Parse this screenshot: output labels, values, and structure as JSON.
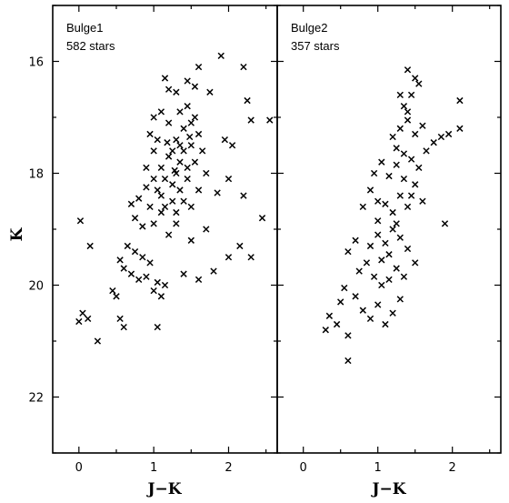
{
  "chart_data": [
    {
      "type": "scatter",
      "panel": "left",
      "annotation_name": "Bulge1",
      "annotation_count": "582 stars",
      "xlabel": "J−K",
      "ylabel": "K",
      "xlim": [
        -0.35,
        2.65
      ],
      "ylim": [
        23.0,
        15.0
      ],
      "y_inverted": true,
      "xticks": [
        0,
        1,
        2
      ],
      "xtick_labels": [
        "0",
        "1",
        "2"
      ],
      "yticks": [
        16,
        18,
        20,
        22
      ],
      "ytick_labels": [
        "16",
        "18",
        "20",
        "22"
      ],
      "marker": "x",
      "points": [
        [
          0.02,
          18.85
        ],
        [
          0.15,
          19.3
        ],
        [
          0.0,
          20.65
        ],
        [
          0.05,
          20.5
        ],
        [
          0.12,
          20.6
        ],
        [
          0.25,
          21.0
        ],
        [
          0.45,
          20.1
        ],
        [
          0.5,
          20.2
        ],
        [
          0.55,
          20.6
        ],
        [
          0.6,
          20.75
        ],
        [
          0.55,
          19.55
        ],
        [
          0.6,
          19.7
        ],
        [
          0.65,
          19.3
        ],
        [
          0.7,
          19.8
        ],
        [
          0.75,
          19.4
        ],
        [
          0.8,
          19.9
        ],
        [
          0.85,
          19.5
        ],
        [
          0.9,
          19.85
        ],
        [
          0.95,
          19.6
        ],
        [
          1.0,
          20.1
        ],
        [
          1.05,
          19.95
        ],
        [
          1.1,
          20.2
        ],
        [
          1.15,
          20.0
        ],
        [
          1.05,
          20.75
        ],
        [
          0.7,
          18.55
        ],
        [
          0.75,
          18.8
        ],
        [
          0.8,
          18.45
        ],
        [
          0.85,
          18.95
        ],
        [
          0.9,
          18.25
        ],
        [
          0.95,
          18.6
        ],
        [
          1.0,
          17.6
        ],
        [
          0.9,
          17.9
        ],
        [
          0.95,
          17.3
        ],
        [
          1.0,
          17.0
        ],
        [
          1.05,
          17.4
        ],
        [
          1.15,
          16.3
        ],
        [
          1.2,
          16.5
        ],
        [
          1.1,
          16.9
        ],
        [
          1.3,
          16.55
        ],
        [
          1.45,
          16.35
        ],
        [
          1.55,
          16.45
        ],
        [
          1.6,
          16.1
        ],
        [
          1.9,
          15.9
        ],
        [
          2.2,
          16.1
        ],
        [
          2.25,
          16.7
        ],
        [
          2.3,
          17.05
        ],
        [
          2.55,
          17.05
        ],
        [
          1.75,
          16.55
        ],
        [
          1.95,
          17.4
        ],
        [
          2.05,
          17.5
        ],
        [
          2.0,
          18.1
        ],
        [
          1.85,
          18.35
        ],
        [
          2.2,
          18.4
        ],
        [
          2.45,
          18.8
        ],
        [
          2.3,
          19.5
        ],
        [
          2.15,
          19.3
        ],
        [
          2.0,
          19.5
        ],
        [
          1.8,
          19.75
        ],
        [
          1.6,
          19.9
        ],
        [
          1.4,
          19.8
        ],
        [
          1.5,
          19.2
        ],
        [
          1.7,
          19.0
        ],
        [
          1.3,
          18.9
        ],
        [
          1.1,
          18.7
        ],
        [
          1.2,
          19.1
        ],
        [
          1.0,
          18.9
        ],
        [
          1.25,
          18.2
        ],
        [
          1.3,
          18.0
        ],
        [
          1.35,
          17.8
        ],
        [
          1.4,
          17.6
        ],
        [
          1.45,
          17.9
        ],
        [
          1.5,
          17.5
        ],
        [
          1.2,
          17.7
        ],
        [
          1.15,
          18.1
        ],
        [
          1.1,
          18.4
        ],
        [
          1.25,
          18.5
        ],
        [
          1.35,
          18.3
        ],
        [
          1.45,
          18.1
        ],
        [
          1.55,
          17.8
        ],
        [
          1.6,
          17.3
        ],
        [
          1.5,
          17.1
        ],
        [
          1.4,
          17.2
        ],
        [
          1.3,
          17.4
        ],
        [
          1.2,
          17.1
        ],
        [
          1.35,
          16.9
        ],
        [
          1.45,
          16.8
        ],
        [
          1.55,
          17.0
        ],
        [
          1.65,
          17.6
        ],
        [
          1.7,
          18.0
        ],
        [
          1.6,
          18.3
        ],
        [
          1.5,
          18.6
        ],
        [
          1.4,
          18.5
        ],
        [
          1.3,
          18.7
        ],
        [
          1.15,
          18.6
        ],
        [
          1.05,
          18.3
        ],
        [
          1.0,
          18.1
        ],
        [
          1.1,
          17.9
        ],
        [
          1.25,
          17.6
        ],
        [
          1.35,
          17.5
        ],
        [
          1.48,
          17.35
        ],
        [
          1.28,
          17.95
        ],
        [
          1.18,
          17.45
        ]
      ]
    },
    {
      "type": "scatter",
      "panel": "right",
      "annotation_name": "Bulge2",
      "annotation_count": "357 stars",
      "xlabel": "J−K",
      "xlim": [
        -0.35,
        2.65
      ],
      "ylim": [
        23.0,
        15.0
      ],
      "y_inverted": true,
      "xticks": [
        0,
        1,
        2
      ],
      "xtick_labels": [
        "0",
        "1",
        "2"
      ],
      "marker": "x",
      "points": [
        [
          0.3,
          20.8
        ],
        [
          0.35,
          20.55
        ],
        [
          0.45,
          20.7
        ],
        [
          0.5,
          20.3
        ],
        [
          0.6,
          20.9
        ],
        [
          0.6,
          21.35
        ],
        [
          0.55,
          20.05
        ],
        [
          0.7,
          20.2
        ],
        [
          0.8,
          20.45
        ],
        [
          0.9,
          20.6
        ],
        [
          1.0,
          20.35
        ],
        [
          1.1,
          20.7
        ],
        [
          1.2,
          20.5
        ],
        [
          1.3,
          20.25
        ],
        [
          0.75,
          19.75
        ],
        [
          0.85,
          19.6
        ],
        [
          0.95,
          19.85
        ],
        [
          1.05,
          19.55
        ],
        [
          1.15,
          19.9
        ],
        [
          1.25,
          19.7
        ],
        [
          0.6,
          19.4
        ],
        [
          0.7,
          19.2
        ],
        [
          0.9,
          19.3
        ],
        [
          1.0,
          19.1
        ],
        [
          1.1,
          19.25
        ],
        [
          1.2,
          19.0
        ],
        [
          1.3,
          19.15
        ],
        [
          1.4,
          19.35
        ],
        [
          1.5,
          19.6
        ],
        [
          1.9,
          18.9
        ],
        [
          0.8,
          18.6
        ],
        [
          0.9,
          18.3
        ],
        [
          1.0,
          18.85
        ],
        [
          1.1,
          18.55
        ],
        [
          1.2,
          18.7
        ],
        [
          1.3,
          18.4
        ],
        [
          1.4,
          18.6
        ],
        [
          1.5,
          18.2
        ],
        [
          1.6,
          18.5
        ],
        [
          0.95,
          18.0
        ],
        [
          1.05,
          17.8
        ],
        [
          1.15,
          18.05
        ],
        [
          1.25,
          17.85
        ],
        [
          1.35,
          18.1
        ],
        [
          1.45,
          17.75
        ],
        [
          1.55,
          17.9
        ],
        [
          1.65,
          17.6
        ],
        [
          1.75,
          17.45
        ],
        [
          1.85,
          17.35
        ],
        [
          1.95,
          17.3
        ],
        [
          2.1,
          16.7
        ],
        [
          2.1,
          17.2
        ],
        [
          1.2,
          17.35
        ],
        [
          1.3,
          17.2
        ],
        [
          1.4,
          17.05
        ],
        [
          1.5,
          17.3
        ],
        [
          1.6,
          17.15
        ],
        [
          1.3,
          16.6
        ],
        [
          1.35,
          16.8
        ],
        [
          1.4,
          16.15
        ],
        [
          1.5,
          16.3
        ],
        [
          1.55,
          16.4
        ],
        [
          1.45,
          16.6
        ],
        [
          1.4,
          16.9
        ],
        [
          1.25,
          17.55
        ],
        [
          1.35,
          17.65
        ],
        [
          1.45,
          18.4
        ],
        [
          1.25,
          18.9
        ],
        [
          1.15,
          19.45
        ],
        [
          1.05,
          20.0
        ],
        [
          1.35,
          19.85
        ],
        [
          1.0,
          18.5
        ]
      ]
    }
  ]
}
